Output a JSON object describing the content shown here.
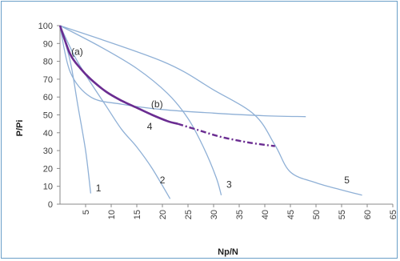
{
  "chart_data": {
    "type": "line",
    "xlabel": "Np/N",
    "ylabel": "P/Pi",
    "xlim": [
      0,
      65
    ],
    "ylim": [
      0,
      100
    ],
    "x_ticks": [
      "5",
      "10",
      "15",
      "20",
      "25",
      "30",
      "35",
      "40",
      "45",
      "50",
      "55",
      "60",
      "65"
    ],
    "y_ticks": [
      "0",
      "10",
      "20",
      "30",
      "40",
      "50",
      "60",
      "70",
      "80",
      "90",
      "100"
    ],
    "colors": {
      "curve": "#8fb0d6",
      "highlight": "#6a2c91",
      "axis": "#8a8a8a",
      "border": "#6a9fc8"
    },
    "series": [
      {
        "name": "1",
        "label_at": [
          7,
          9
        ],
        "points": [
          [
            0,
            100
          ],
          [
            2,
            80
          ],
          [
            3.5,
            55
          ],
          [
            5,
            30
          ],
          [
            6,
            6
          ]
        ]
      },
      {
        "name": "2",
        "label_at": [
          19.5,
          13.5
        ],
        "points": [
          [
            0,
            100
          ],
          [
            3,
            82
          ],
          [
            6,
            68
          ],
          [
            9,
            55
          ],
          [
            12,
            42
          ],
          [
            15,
            32
          ],
          [
            18,
            20
          ],
          [
            21.5,
            3
          ]
        ]
      },
      {
        "name": "3",
        "label_at": [
          32.5,
          11
        ],
        "points": [
          [
            0,
            100
          ],
          [
            8,
            88
          ],
          [
            15,
            76
          ],
          [
            21,
            62
          ],
          [
            25,
            48
          ],
          [
            28,
            32
          ],
          [
            30.5,
            15
          ],
          [
            31.5,
            5
          ]
        ]
      },
      {
        "name": "4",
        "label_at": [
          17,
          43.5
        ],
        "points": [
          [
            0,
            100
          ],
          [
            2,
            74
          ],
          [
            6,
            60
          ],
          [
            12,
            56
          ],
          [
            20,
            53
          ],
          [
            30,
            51
          ],
          [
            40,
            49.5
          ],
          [
            48,
            49
          ]
        ]
      },
      {
        "name": "5",
        "label_at": [
          55.5,
          13.5
        ],
        "points": [
          [
            0,
            100
          ],
          [
            20,
            80
          ],
          [
            30,
            64
          ],
          [
            38,
            50
          ],
          [
            42,
            33
          ],
          [
            45,
            18
          ],
          [
            50,
            12
          ],
          [
            55,
            8
          ],
          [
            59,
            5
          ]
        ]
      }
    ],
    "annotations": [
      {
        "text": "(a)",
        "at": [
          2.2,
          85.5
        ]
      },
      {
        "text": "(b)",
        "at": [
          17.8,
          56
        ]
      }
    ],
    "highlight_solid": [
      [
        0,
        100
      ],
      [
        2,
        84
      ],
      [
        4,
        76
      ],
      [
        6,
        70
      ],
      [
        9,
        63
      ],
      [
        12,
        58
      ],
      [
        15,
        54
      ],
      [
        18,
        50
      ],
      [
        21,
        46.5
      ],
      [
        23,
        45
      ]
    ],
    "highlight_dashed": [
      [
        23,
        45
      ],
      [
        27,
        41.5
      ],
      [
        31,
        38
      ],
      [
        35,
        35.5
      ],
      [
        38,
        34
      ],
      [
        42,
        32.5
      ]
    ]
  }
}
